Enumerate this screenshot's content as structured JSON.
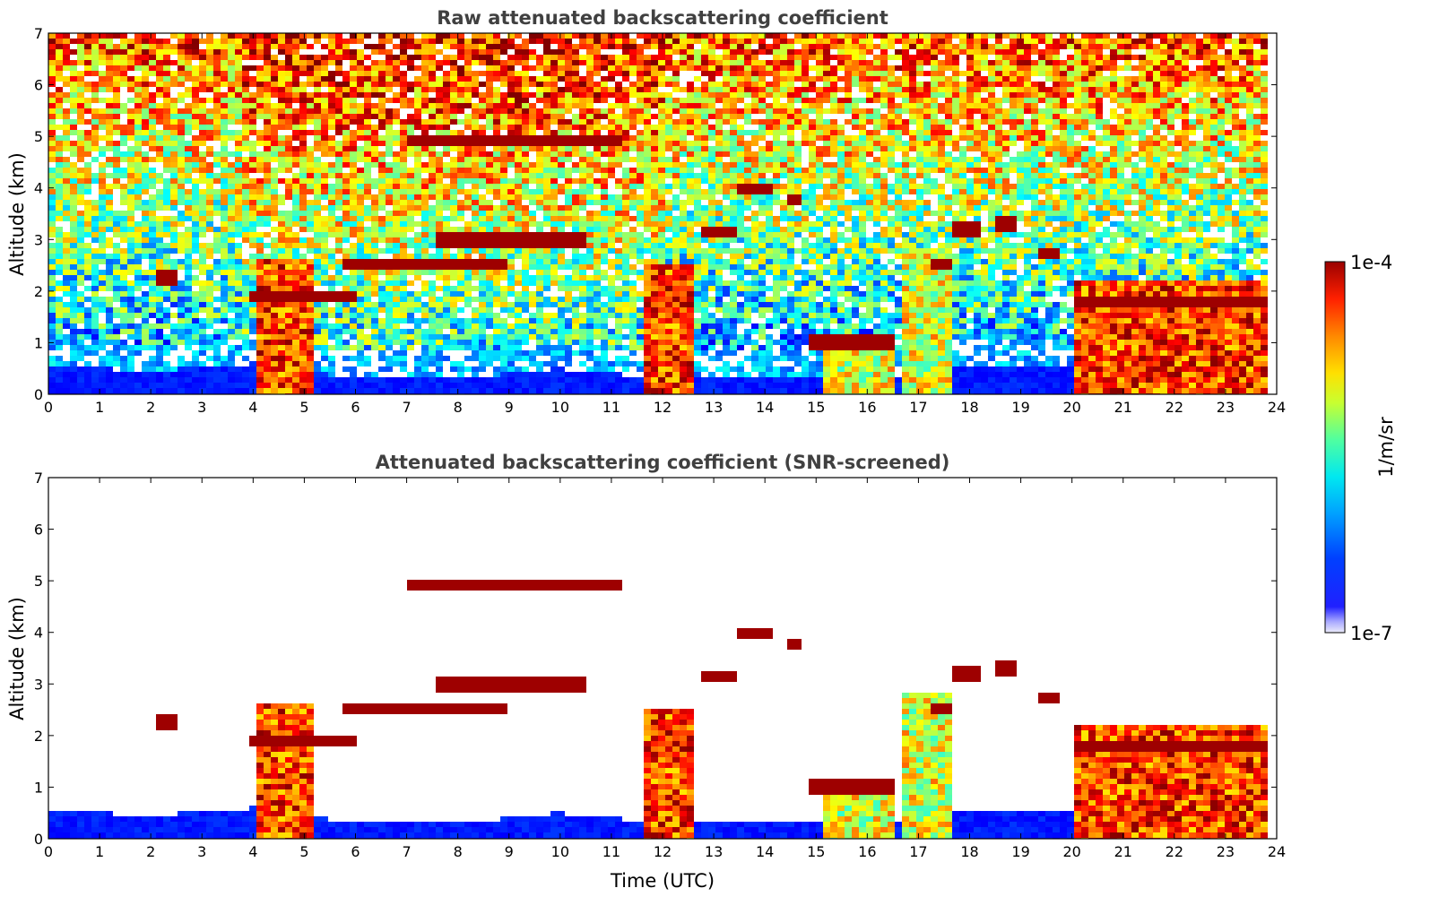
{
  "chart_data": [
    {
      "type": "heatmap",
      "title": "Raw attenuated backscattering coefficient",
      "xlabel": "",
      "ylabel": "Altitude (km)",
      "xlim": [
        0,
        24
      ],
      "ylim": [
        0,
        7
      ],
      "xticks": [
        "0",
        "1",
        "2",
        "3",
        "4",
        "5",
        "6",
        "7",
        "8",
        "9",
        "10",
        "11",
        "12",
        "13",
        "14",
        "15",
        "16",
        "17",
        "18",
        "19",
        "20",
        "21",
        "22",
        "23",
        "24"
      ],
      "yticks": [
        "0",
        "1",
        "2",
        "3",
        "4",
        "5",
        "6",
        "7"
      ],
      "data_end_time": 23.8,
      "boundary_layer_top_km": [
        [
          0,
          0.55
        ],
        [
          2,
          0.45
        ],
        [
          4,
          0.6
        ],
        [
          6,
          0.3
        ],
        [
          8,
          0.3
        ],
        [
          10,
          0.5
        ],
        [
          12,
          0.3
        ],
        [
          14,
          0.35
        ],
        [
          16,
          0.3
        ],
        [
          18,
          0.55
        ],
        [
          20,
          0.5
        ],
        [
          22,
          0.5
        ],
        [
          23.8,
          0.5
        ]
      ],
      "cloud_columns": [
        {
          "x": [
            4.0,
            5.2
          ],
          "top": 2.6,
          "level": "high"
        },
        {
          "x": [
            11.7,
            12.6
          ],
          "top": 2.5,
          "level": "high"
        },
        {
          "x": [
            15.2,
            16.5
          ],
          "top": 1.2,
          "level": "medium"
        },
        {
          "x": [
            16.7,
            17.7
          ],
          "top": 2.8,
          "level": "medium"
        },
        {
          "x": [
            20.0,
            23.8
          ],
          "top": 2.2,
          "level": "high"
        }
      ],
      "cloud_layers": [
        {
          "x": [
            2.1,
            2.5
          ],
          "alt": 2.25
        },
        {
          "x": [
            3.9,
            6.0
          ],
          "alt": 1.9
        },
        {
          "x": [
            5.8,
            9.0
          ],
          "alt": 2.5
        },
        {
          "x": [
            7.0,
            11.2
          ],
          "alt": 4.95
        },
        {
          "x": [
            7.5,
            10.5
          ],
          "alt": 3.0
        },
        {
          "x": [
            12.8,
            13.4
          ],
          "alt": 3.15
        },
        {
          "x": [
            13.4,
            14.1
          ],
          "alt": 4.0
        },
        {
          "x": [
            14.5,
            14.7
          ],
          "alt": 3.8
        },
        {
          "x": [
            14.8,
            16.5
          ],
          "alt": 1.0
        },
        {
          "x": [
            17.3,
            17.6
          ],
          "alt": 2.5
        },
        {
          "x": [
            17.7,
            18.2
          ],
          "alt": 3.2
        },
        {
          "x": [
            18.5,
            18.9
          ],
          "alt": 3.3
        },
        {
          "x": [
            19.3,
            19.7
          ],
          "alt": 2.75
        },
        {
          "x": [
            20.0,
            23.8
          ],
          "alt": 1.8
        }
      ]
    },
    {
      "type": "heatmap",
      "title": "Attenuated backscattering coefficient (SNR-screened)",
      "xlabel": "Time (UTC)",
      "ylabel": "Altitude (km)",
      "xlim": [
        0,
        24
      ],
      "ylim": [
        0,
        7
      ],
      "xticks": [
        "0",
        "1",
        "2",
        "3",
        "4",
        "5",
        "6",
        "7",
        "8",
        "9",
        "10",
        "11",
        "12",
        "13",
        "14",
        "15",
        "16",
        "17",
        "18",
        "19",
        "20",
        "21",
        "22",
        "23",
        "24"
      ],
      "yticks": [
        "0",
        "1",
        "2",
        "3",
        "4",
        "5",
        "6",
        "7"
      ],
      "screening": "SNR"
    }
  ],
  "colorbar": {
    "label": "1/m/sr",
    "max_label": "1e-4",
    "min_label": "1e-7",
    "colormap": "jet",
    "colors": [
      "#e8e8f8",
      "#8080ff",
      "#0000ff",
      "#0080ff",
      "#00e0ff",
      "#40ffb0",
      "#c0ff40",
      "#ffe000",
      "#ff8000",
      "#ff2000",
      "#a00000"
    ]
  }
}
